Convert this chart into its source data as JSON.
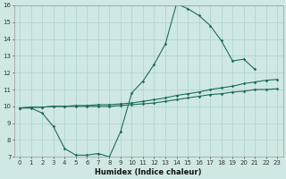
{
  "xlabel": "Humidex (Indice chaleur)",
  "ylabel": "",
  "xlim": [
    -0.5,
    23.5
  ],
  "ylim": [
    7,
    16
  ],
  "bg_color": "#cfe8e5",
  "grid_color": "#b0d4d0",
  "line_color": "#1e6b5e",
  "line1_x": [
    0,
    1,
    2,
    3,
    4,
    5,
    6,
    7,
    8,
    9,
    10,
    11,
    12,
    13,
    14,
    15,
    16,
    17,
    18,
    19,
    20,
    21
  ],
  "line1_y": [
    9.9,
    9.9,
    9.6,
    8.8,
    7.5,
    7.1,
    7.1,
    7.2,
    7.0,
    8.5,
    10.8,
    11.5,
    12.5,
    13.7,
    16.1,
    15.8,
    15.4,
    14.8,
    13.9,
    12.7,
    12.8,
    12.2
  ],
  "line2_x": [
    0,
    1,
    2,
    3,
    4,
    5,
    6,
    7,
    8,
    9,
    10,
    11,
    12,
    13,
    14,
    15,
    16,
    17,
    18,
    19,
    20,
    21,
    22,
    23
  ],
  "line2_y": [
    9.9,
    9.95,
    9.95,
    10.0,
    10.0,
    10.05,
    10.05,
    10.1,
    10.1,
    10.15,
    10.2,
    10.3,
    10.4,
    10.5,
    10.65,
    10.75,
    10.85,
    11.0,
    11.1,
    11.2,
    11.35,
    11.45,
    11.55,
    11.6
  ],
  "line3_x": [
    0,
    1,
    2,
    3,
    4,
    5,
    6,
    7,
    8,
    9,
    10,
    11,
    12,
    13,
    14,
    15,
    16,
    17,
    18,
    19,
    20,
    21,
    22,
    23
  ],
  "line3_y": [
    9.9,
    9.95,
    9.95,
    10.0,
    10.0,
    10.0,
    10.0,
    10.0,
    10.0,
    10.05,
    10.1,
    10.15,
    10.2,
    10.3,
    10.4,
    10.5,
    10.6,
    10.7,
    10.75,
    10.85,
    10.9,
    11.0,
    11.0,
    11.05
  ],
  "xtick_vals": [
    0,
    1,
    2,
    3,
    4,
    5,
    6,
    7,
    8,
    9,
    10,
    11,
    12,
    13,
    14,
    15,
    16,
    17,
    18,
    19,
    20,
    21,
    22,
    23
  ],
  "xtick_labels": [
    "0",
    "1",
    "2",
    "3",
    "4",
    "5",
    "6",
    "7",
    "8",
    "9",
    "10",
    "11",
    "12",
    "13",
    "14",
    "15",
    "16",
    "17",
    "18",
    "19",
    "20",
    "21",
    "22",
    "23"
  ],
  "ytick_vals": [
    7,
    8,
    9,
    10,
    11,
    12,
    13,
    14,
    15,
    16
  ],
  "ytick_labels": [
    "7",
    "8",
    "9",
    "10",
    "11",
    "12",
    "13",
    "14",
    "15",
    "16"
  ],
  "marker": "D",
  "markersize": 1.8,
  "linewidth": 0.8,
  "xlabel_fontsize": 6,
  "tick_fontsize": 5
}
